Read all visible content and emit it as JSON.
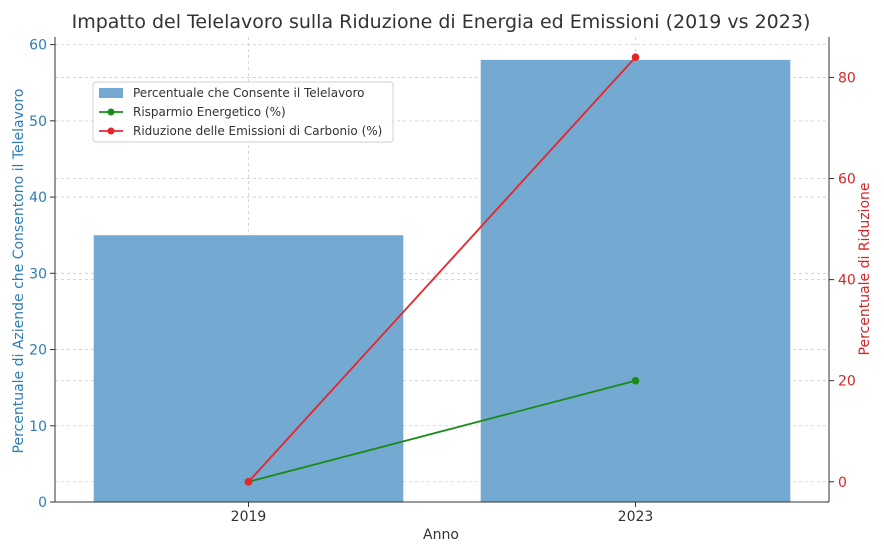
{
  "chart_data": {
    "type": "bar",
    "title": "Impatto del Telelavoro sulla Riduzione di Energia ed Emissioni (2019 vs 2023)",
    "xlabel": "Anno",
    "ylabel_left": "Percentuale di Aziende che Consentono il Telelavoro",
    "ylabel_right": "Percentuale di Riduzione",
    "categories": [
      "2019",
      "2023"
    ],
    "ylim_left": [
      0,
      61
    ],
    "yticks_left": [
      0,
      10,
      20,
      30,
      40,
      50,
      60
    ],
    "ylim_right": [
      -4,
      88
    ],
    "yticks_right": [
      0,
      20,
      40,
      60,
      80
    ],
    "grid": true,
    "legend_position": "upper-left",
    "series": [
      {
        "name": "Percentuale che Consente il Telelavoro",
        "kind": "bar",
        "axis": "left",
        "values": [
          35,
          58
        ],
        "color": "#74aad1"
      },
      {
        "name": "Risparmio Energetico (%)",
        "kind": "line",
        "axis": "right",
        "values": [
          0,
          20
        ],
        "color": "#1a8a1a"
      },
      {
        "name": "Riduzione delle Emissioni di Carbonio (%)",
        "kind": "line",
        "axis": "right",
        "values": [
          0,
          84
        ],
        "color": "#e8242a"
      }
    ],
    "colors": {
      "left_axis": "#2e7db5",
      "right_axis": "#d62728",
      "text": "#333333",
      "grid": "#cccccc"
    }
  }
}
